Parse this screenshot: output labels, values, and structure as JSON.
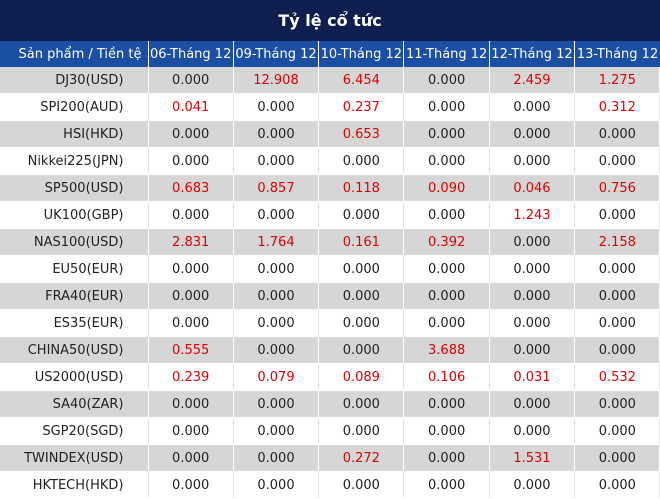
{
  "title": "Tỷ lệ cổ tức",
  "header": {
    "product_label": "Sản phẩm / Tiền tệ",
    "dates": [
      "06-Tháng 12",
      "09-Tháng 12",
      "10-Tháng 12",
      "11-Tháng 12",
      "12-Tháng 12",
      "13-Tháng 12"
    ]
  },
  "colors": {
    "title_bg": "#0e1e4f",
    "header_bg": "#1b4fa3",
    "positive_value": "#e00000"
  },
  "rows": [
    {
      "product": "DJ30(USD)",
      "values": [
        "0.000",
        "12.908",
        "6.454",
        "0.000",
        "2.459",
        "1.275"
      ]
    },
    {
      "product": "SPI200(AUD)",
      "values": [
        "0.041",
        "0.000",
        "0.237",
        "0.000",
        "0.000",
        "0.312"
      ]
    },
    {
      "product": "HSI(HKD)",
      "values": [
        "0.000",
        "0.000",
        "0.653",
        "0.000",
        "0.000",
        "0.000"
      ]
    },
    {
      "product": "Nikkei225(JPN)",
      "values": [
        "0.000",
        "0.000",
        "0.000",
        "0.000",
        "0.000",
        "0.000"
      ]
    },
    {
      "product": "SP500(USD)",
      "values": [
        "0.683",
        "0.857",
        "0.118",
        "0.090",
        "0.046",
        "0.756"
      ]
    },
    {
      "product": "UK100(GBP)",
      "values": [
        "0.000",
        "0.000",
        "0.000",
        "0.000",
        "1.243",
        "0.000"
      ]
    },
    {
      "product": "NAS100(USD)",
      "values": [
        "2.831",
        "1.764",
        "0.161",
        "0.392",
        "0.000",
        "2.158"
      ]
    },
    {
      "product": "EU50(EUR)",
      "values": [
        "0.000",
        "0.000",
        "0.000",
        "0.000",
        "0.000",
        "0.000"
      ]
    },
    {
      "product": "FRA40(EUR)",
      "values": [
        "0.000",
        "0.000",
        "0.000",
        "0.000",
        "0.000",
        "0.000"
      ]
    },
    {
      "product": "ES35(EUR)",
      "values": [
        "0.000",
        "0.000",
        "0.000",
        "0.000",
        "0.000",
        "0.000"
      ]
    },
    {
      "product": "CHINA50(USD)",
      "values": [
        "0.555",
        "0.000",
        "0.000",
        "3.688",
        "0.000",
        "0.000"
      ]
    },
    {
      "product": "US2000(USD)",
      "values": [
        "0.239",
        "0.079",
        "0.089",
        "0.106",
        "0.031",
        "0.532"
      ]
    },
    {
      "product": "SA40(ZAR)",
      "values": [
        "0.000",
        "0.000",
        "0.000",
        "0.000",
        "0.000",
        "0.000"
      ]
    },
    {
      "product": "SGP20(SGD)",
      "values": [
        "0.000",
        "0.000",
        "0.000",
        "0.000",
        "0.000",
        "0.000"
      ]
    },
    {
      "product": "TWINDEX(USD)",
      "values": [
        "0.000",
        "0.000",
        "0.272",
        "0.000",
        "1.531",
        "0.000"
      ]
    },
    {
      "product": "HKTECH(HKD)",
      "values": [
        "0.000",
        "0.000",
        "0.000",
        "0.000",
        "0.000",
        "0.000"
      ]
    }
  ]
}
